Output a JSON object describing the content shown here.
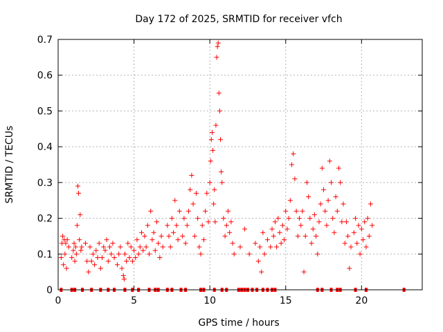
{
  "chart_data": {
    "type": "scatter",
    "title": "Day 172 of 2025, SRMTID for receiver vfch",
    "xlabel": "GPS time / hours",
    "ylabel": "SRMTID / TECUs",
    "xlim": [
      0,
      24
    ],
    "ylim": [
      0,
      0.7
    ],
    "xticks": [
      "0",
      "5",
      "10",
      "15",
      "20"
    ],
    "yticks": [
      "0",
      "0.1",
      "0.2",
      "0.3",
      "0.4",
      "0.5",
      "0.6",
      "0.7"
    ],
    "grid": true,
    "marker": "+",
    "color": "#ff0000",
    "series": [
      {
        "name": "SRMTID",
        "points": [
          [
            0.2,
            0.09
          ],
          [
            0.25,
            0.13
          ],
          [
            0.3,
            0.15
          ],
          [
            0.35,
            0.07
          ],
          [
            0.4,
            0.14
          ],
          [
            0.45,
            0.1
          ],
          [
            0.5,
            0.13
          ],
          [
            0.55,
            0.06
          ],
          [
            0.6,
            0.14
          ],
          [
            0.7,
            0.12
          ],
          [
            0.9,
            0.09
          ],
          [
            1.0,
            0.11
          ],
          [
            1.05,
            0.13
          ],
          [
            1.1,
            0.08
          ],
          [
            1.15,
            0.12
          ],
          [
            1.2,
            0.1
          ],
          [
            1.25,
            0.18
          ],
          [
            1.3,
            0.29
          ],
          [
            1.35,
            0.27
          ],
          [
            1.4,
            0.14
          ],
          [
            1.45,
            0.21
          ],
          [
            1.5,
            0.11
          ],
          [
            1.55,
            0.12
          ],
          [
            1.8,
            0.13
          ],
          [
            1.9,
            0.08
          ],
          [
            2.0,
            0.05
          ],
          [
            2.1,
            0.12
          ],
          [
            2.2,
            0.08
          ],
          [
            2.3,
            0.1
          ],
          [
            2.4,
            0.07
          ],
          [
            2.5,
            0.11
          ],
          [
            2.6,
            0.09
          ],
          [
            2.7,
            0.13
          ],
          [
            2.8,
            0.06
          ],
          [
            2.9,
            0.09
          ],
          [
            3.0,
            0.12
          ],
          [
            3.1,
            0.11
          ],
          [
            3.2,
            0.14
          ],
          [
            3.3,
            0.08
          ],
          [
            3.4,
            0.12
          ],
          [
            3.5,
            0.1
          ],
          [
            3.6,
            0.13
          ],
          [
            3.7,
            0.09
          ],
          [
            3.9,
            0.07
          ],
          [
            4.0,
            0.1
          ],
          [
            4.1,
            0.12
          ],
          [
            4.2,
            0.06
          ],
          [
            4.3,
            0.04
          ],
          [
            4.35,
            0.03
          ],
          [
            4.4,
            0.1
          ],
          [
            4.5,
            0.08
          ],
          [
            4.6,
            0.13
          ],
          [
            4.7,
            0.09
          ],
          [
            4.8,
            0.12
          ],
          [
            4.9,
            0.08
          ],
          [
            5.0,
            0.11
          ],
          [
            5.1,
            0.09
          ],
          [
            5.2,
            0.14
          ],
          [
            5.3,
            0.1
          ],
          [
            5.4,
            0.12
          ],
          [
            5.5,
            0.16
          ],
          [
            5.6,
            0.11
          ],
          [
            5.7,
            0.15
          ],
          [
            5.8,
            0.12
          ],
          [
            5.9,
            0.18
          ],
          [
            6.0,
            0.1
          ],
          [
            6.1,
            0.22
          ],
          [
            6.2,
            0.14
          ],
          [
            6.3,
            0.16
          ],
          [
            6.4,
            0.11
          ],
          [
            6.5,
            0.19
          ],
          [
            6.6,
            0.13
          ],
          [
            6.7,
            0.09
          ],
          [
            6.8,
            0.15
          ],
          [
            6.9,
            0.12
          ],
          [
            7.2,
            0.18
          ],
          [
            7.3,
            0.15
          ],
          [
            7.4,
            0.12
          ],
          [
            7.5,
            0.2
          ],
          [
            7.6,
            0.16
          ],
          [
            7.7,
            0.25
          ],
          [
            7.8,
            0.18
          ],
          [
            7.9,
            0.14
          ],
          [
            8.0,
            0.22
          ],
          [
            8.2,
            0.15
          ],
          [
            8.3,
            0.2
          ],
          [
            8.4,
            0.13
          ],
          [
            8.5,
            0.18
          ],
          [
            8.6,
            0.22
          ],
          [
            8.7,
            0.28
          ],
          [
            8.8,
            0.32
          ],
          [
            8.9,
            0.24
          ],
          [
            9.0,
            0.15
          ],
          [
            9.1,
            0.27
          ],
          [
            9.2,
            0.2
          ],
          [
            9.3,
            0.12
          ],
          [
            9.4,
            0.1
          ],
          [
            9.5,
            0.18
          ],
          [
            9.6,
            0.14
          ],
          [
            9.7,
            0.22
          ],
          [
            9.8,
            0.27
          ],
          [
            9.9,
            0.19
          ],
          [
            10.0,
            0.3
          ],
          [
            10.05,
            0.36
          ],
          [
            10.1,
            0.42
          ],
          [
            10.15,
            0.44
          ],
          [
            10.2,
            0.39
          ],
          [
            10.25,
            0.24
          ],
          [
            10.3,
            0.28
          ],
          [
            10.35,
            0.19
          ],
          [
            10.4,
            0.46
          ],
          [
            10.45,
            0.65
          ],
          [
            10.5,
            0.68
          ],
          [
            10.55,
            0.69
          ],
          [
            10.6,
            0.55
          ],
          [
            10.65,
            0.5
          ],
          [
            10.7,
            0.42
          ],
          [
            10.75,
            0.33
          ],
          [
            10.8,
            0.3
          ],
          [
            10.9,
            0.2
          ],
          [
            11.0,
            0.15
          ],
          [
            11.1,
            0.18
          ],
          [
            11.2,
            0.22
          ],
          [
            11.3,
            0.16
          ],
          [
            11.4,
            0.19
          ],
          [
            11.5,
            0.13
          ],
          [
            11.6,
            0.1
          ],
          [
            12.0,
            0.12
          ],
          [
            12.3,
            0.17
          ],
          [
            12.6,
            0.1
          ],
          [
            13.0,
            0.13
          ],
          [
            13.2,
            0.08
          ],
          [
            13.3,
            0.12
          ],
          [
            13.4,
            0.05
          ],
          [
            13.5,
            0.16
          ],
          [
            13.6,
            0.1
          ],
          [
            13.8,
            0.14
          ],
          [
            14.0,
            0.12
          ],
          [
            14.1,
            0.17
          ],
          [
            14.2,
            0.15
          ],
          [
            14.3,
            0.19
          ],
          [
            14.4,
            0.12
          ],
          [
            14.5,
            0.2
          ],
          [
            14.6,
            0.16
          ],
          [
            14.7,
            0.13
          ],
          [
            14.8,
            0.18
          ],
          [
            14.9,
            0.14
          ],
          [
            15.0,
            0.22
          ],
          [
            15.1,
            0.17
          ],
          [
            15.2,
            0.2
          ],
          [
            15.3,
            0.25
          ],
          [
            15.4,
            0.35
          ],
          [
            15.5,
            0.38
          ],
          [
            15.6,
            0.31
          ],
          [
            15.7,
            0.22
          ],
          [
            15.8,
            0.15
          ],
          [
            15.9,
            0.2
          ],
          [
            16.0,
            0.18
          ],
          [
            16.1,
            0.22
          ],
          [
            16.2,
            0.05
          ],
          [
            16.3,
            0.15
          ],
          [
            16.4,
            0.3
          ],
          [
            16.5,
            0.26
          ],
          [
            16.6,
            0.2
          ],
          [
            16.7,
            0.13
          ],
          [
            16.8,
            0.17
          ],
          [
            16.9,
            0.21
          ],
          [
            17.0,
            0.15
          ],
          [
            17.1,
            0.1
          ],
          [
            17.2,
            0.19
          ],
          [
            17.3,
            0.24
          ],
          [
            17.4,
            0.34
          ],
          [
            17.5,
            0.28
          ],
          [
            17.6,
            0.22
          ],
          [
            17.7,
            0.18
          ],
          [
            17.8,
            0.25
          ],
          [
            17.9,
            0.36
          ],
          [
            18.0,
            0.3
          ],
          [
            18.1,
            0.2
          ],
          [
            18.2,
            0.16
          ],
          [
            18.3,
            0.26
          ],
          [
            18.4,
            0.22
          ],
          [
            18.5,
            0.34
          ],
          [
            18.6,
            0.3
          ],
          [
            18.7,
            0.19
          ],
          [
            18.8,
            0.24
          ],
          [
            18.9,
            0.13
          ],
          [
            19.0,
            0.19
          ],
          [
            19.1,
            0.15
          ],
          [
            19.2,
            0.06
          ],
          [
            19.3,
            0.12
          ],
          [
            19.5,
            0.16
          ],
          [
            19.6,
            0.2
          ],
          [
            19.7,
            0.13
          ],
          [
            19.8,
            0.18
          ],
          [
            19.9,
            0.1
          ],
          [
            20.0,
            0.17
          ],
          [
            20.1,
            0.14
          ],
          [
            20.2,
            0.19
          ],
          [
            20.3,
            0.12
          ],
          [
            20.4,
            0.2
          ],
          [
            20.5,
            0.15
          ],
          [
            20.6,
            0.24
          ],
          [
            20.7,
            0.18
          ]
        ]
      }
    ],
    "zero_markers_x": [
      0.2,
      0.9,
      1.1,
      1.6,
      2.2,
      2.8,
      3.3,
      3.7,
      4.4,
      4.9,
      5.3,
      6.0,
      6.4,
      6.6,
      7.2,
      7.5,
      8.1,
      8.4,
      9.4,
      9.6,
      10.3,
      10.8,
      11.1,
      11.9,
      12.1,
      12.3,
      12.5,
      12.8,
      13.1,
      13.5,
      13.8,
      14.1,
      14.3,
      17.1,
      17.4,
      18.0,
      18.4,
      18.6,
      19.6,
      20.3,
      22.8
    ]
  }
}
